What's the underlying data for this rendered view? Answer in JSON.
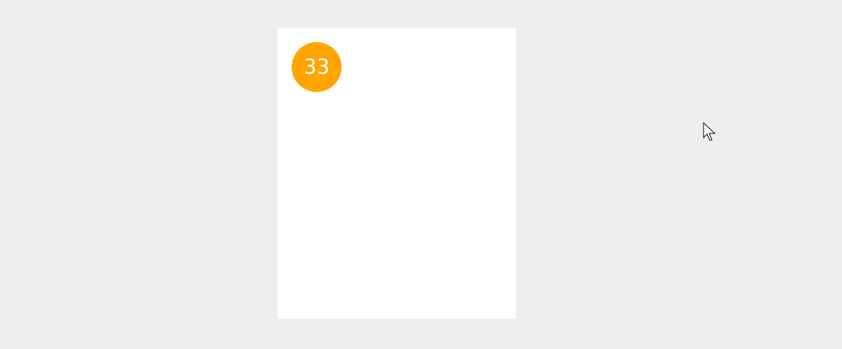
{
  "background_color": "#eeeeee",
  "panel": {
    "background_color": "#ffffff",
    "badge": {
      "value": "33",
      "color": "#ffa500",
      "text_color": "#ffffff"
    }
  },
  "cursor": {
    "icon": "mouse-pointer-icon"
  }
}
